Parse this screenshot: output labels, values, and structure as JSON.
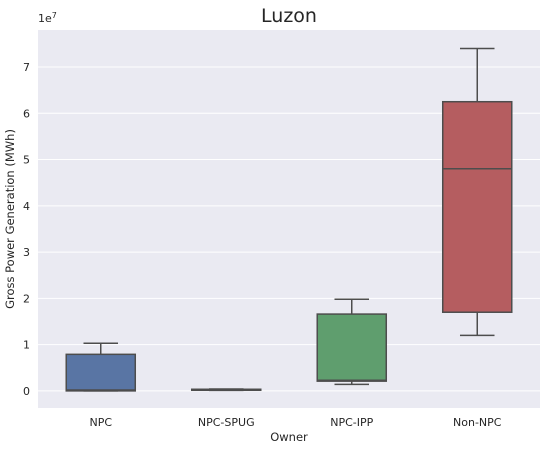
{
  "chart_data": {
    "type": "box",
    "title": "Luzon",
    "xlabel": "Owner",
    "ylabel": "Gross Power Generation (MWh)",
    "offset_label": "1e7",
    "y_scale_factor": 10000000,
    "ylim": [
      -3700000,
      78000000
    ],
    "y_ticks": [
      0,
      10000000,
      20000000,
      30000000,
      40000000,
      50000000,
      60000000,
      70000000
    ],
    "y_tick_labels": [
      "0",
      "1",
      "2",
      "3",
      "4",
      "5",
      "6",
      "7"
    ],
    "grid": true,
    "categories": [
      "NPC",
      "NPC-SPUG",
      "NPC-IPP",
      "Non-NPC"
    ],
    "boxes": [
      {
        "category": "NPC",
        "color": "#5975a4",
        "whisker_low": 0,
        "q1": 0,
        "median": 200000,
        "q3": 7900000,
        "whisker_high": 10300000
      },
      {
        "category": "NPC-SPUG",
        "color": "#5f9e6e",
        "whisker_low": 100000,
        "q1": 150000,
        "median": 250000,
        "q3": 350000,
        "whisker_high": 400000
      },
      {
        "category": "NPC-IPP",
        "color": "#5f9e6e",
        "whisker_low": 1400000,
        "q1": 2100000,
        "median": 2300000,
        "q3": 16600000,
        "whisker_high": 19800000
      },
      {
        "category": "Non-NPC",
        "color": "#b55d60",
        "whisker_low": 12000000,
        "q1": 17000000,
        "median": 48000000,
        "q3": 62500000,
        "whisker_high": 74000000
      }
    ],
    "colors": {
      "background": "#eaeaf2",
      "grid": "#ffffff",
      "line": "#4d4d4d",
      "text": "#262626"
    }
  }
}
